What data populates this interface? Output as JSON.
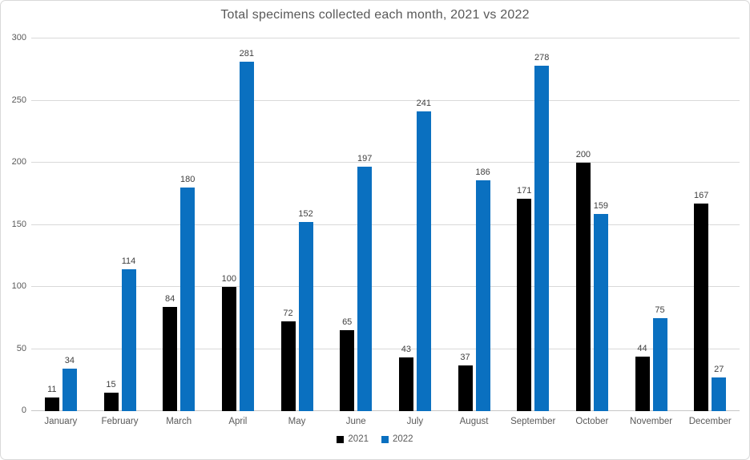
{
  "chart_data": {
    "type": "bar",
    "title": "Total specimens collected each month, 2021 vs 2022",
    "categories": [
      "January",
      "February",
      "March",
      "April",
      "May",
      "June",
      "July",
      "August",
      "September",
      "October",
      "November",
      "December"
    ],
    "series": [
      {
        "name": "2021",
        "color": "#000000",
        "values": [
          11,
          15,
          84,
          100,
          72,
          65,
          43,
          37,
          171,
          200,
          44,
          167
        ]
      },
      {
        "name": "2022",
        "color": "#0a70c0",
        "values": [
          34,
          114,
          180,
          281,
          152,
          197,
          241,
          186,
          278,
          159,
          75,
          27
        ]
      }
    ],
    "xlabel": "",
    "ylabel": "",
    "ylim": [
      0,
      300
    ],
    "yticks": [
      0,
      50,
      100,
      150,
      200,
      250,
      300
    ],
    "grid": true,
    "data_labels": true,
    "legend_position": "bottom"
  },
  "colors": {
    "title_text": "#595959",
    "axis_text": "#595959",
    "data_label_text": "#404040",
    "gridline": "#d9d9d9",
    "axis_line": "#c6c6c6",
    "frame_border": "#d9d9d9",
    "background": "#ffffff",
    "series_2021": "#000000",
    "series_2022": "#0a70c0"
  }
}
